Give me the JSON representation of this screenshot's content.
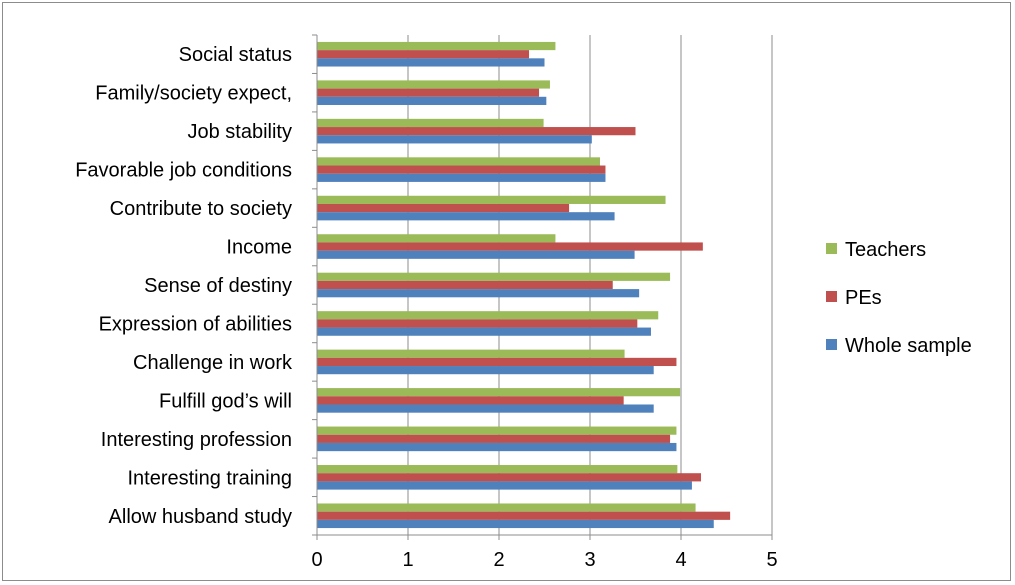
{
  "chart_data": {
    "type": "bar",
    "orientation": "horizontal",
    "categories": [
      "Social status",
      "Family/society expect,",
      "Job stability",
      "Favorable job conditions",
      "Contribute to society",
      "Income",
      "Sense of destiny",
      "Expression of abilities",
      "Challenge in work",
      "Fulfill god’s will",
      "Interesting profession",
      "Interesting training",
      "Allow husband study"
    ],
    "series": [
      {
        "name": "Teachers",
        "color": "#9bbb59",
        "values": [
          2.62,
          2.56,
          2.49,
          3.11,
          3.83,
          2.62,
          3.88,
          3.75,
          3.38,
          3.99,
          3.95,
          3.96,
          4.16
        ]
      },
      {
        "name": "PEs",
        "color": "#c0504d",
        "values": [
          2.33,
          2.44,
          3.5,
          3.17,
          2.77,
          4.24,
          3.25,
          3.52,
          3.95,
          3.37,
          3.88,
          4.22,
          4.54
        ]
      },
      {
        "name": "Whole sample",
        "color": "#4f81bd",
        "values": [
          2.5,
          2.52,
          3.02,
          3.17,
          3.27,
          3.49,
          3.54,
          3.67,
          3.7,
          3.7,
          3.95,
          4.12,
          4.36
        ]
      }
    ],
    "xlim": [
      0,
      5
    ],
    "xticks": [
      "0",
      "1",
      "2",
      "3",
      "4",
      "5"
    ],
    "grid": "vertical",
    "legend": "right"
  }
}
